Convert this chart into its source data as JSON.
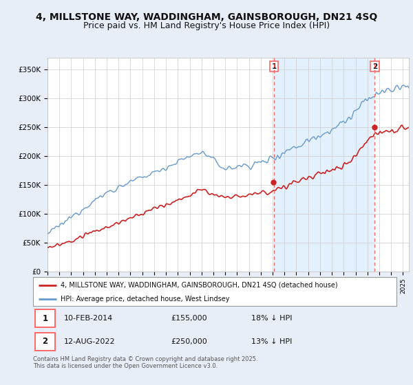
{
  "title": "4, MILLSTONE WAY, WADDINGHAM, GAINSBOROUGH, DN21 4SQ",
  "subtitle": "Price paid vs. HM Land Registry's House Price Index (HPI)",
  "ylabel_ticks": [
    "£0",
    "£50K",
    "£100K",
    "£150K",
    "£200K",
    "£250K",
    "£300K",
    "£350K"
  ],
  "ytick_values": [
    0,
    50000,
    100000,
    150000,
    200000,
    250000,
    300000,
    350000
  ],
  "ylim": [
    0,
    370000
  ],
  "xlim_start": 1995.0,
  "xlim_end": 2025.5,
  "marker1_date": 2014.11,
  "marker1_price": 155000,
  "marker2_date": 2022.62,
  "marker2_price": 250000,
  "legend_line1": "4, MILLSTONE WAY, WADDINGHAM, GAINSBOROUGH, DN21 4SQ (detached house)",
  "legend_line2": "HPI: Average price, detached house, West Lindsey",
  "footer": "Contains HM Land Registry data © Crown copyright and database right 2025.\nThis data is licensed under the Open Government Licence v3.0.",
  "bg_color": "#e8eef8",
  "plot_bg": "#ffffff",
  "shade_bg": "#ddeeff",
  "hpi_color": "#6699cc",
  "price_color": "#cc2222",
  "marker_vline_color": "#ff6666",
  "grid_color": "#cccccc",
  "title_fontsize": 10,
  "subtitle_fontsize": 9,
  "tick_fontsize": 7.5
}
